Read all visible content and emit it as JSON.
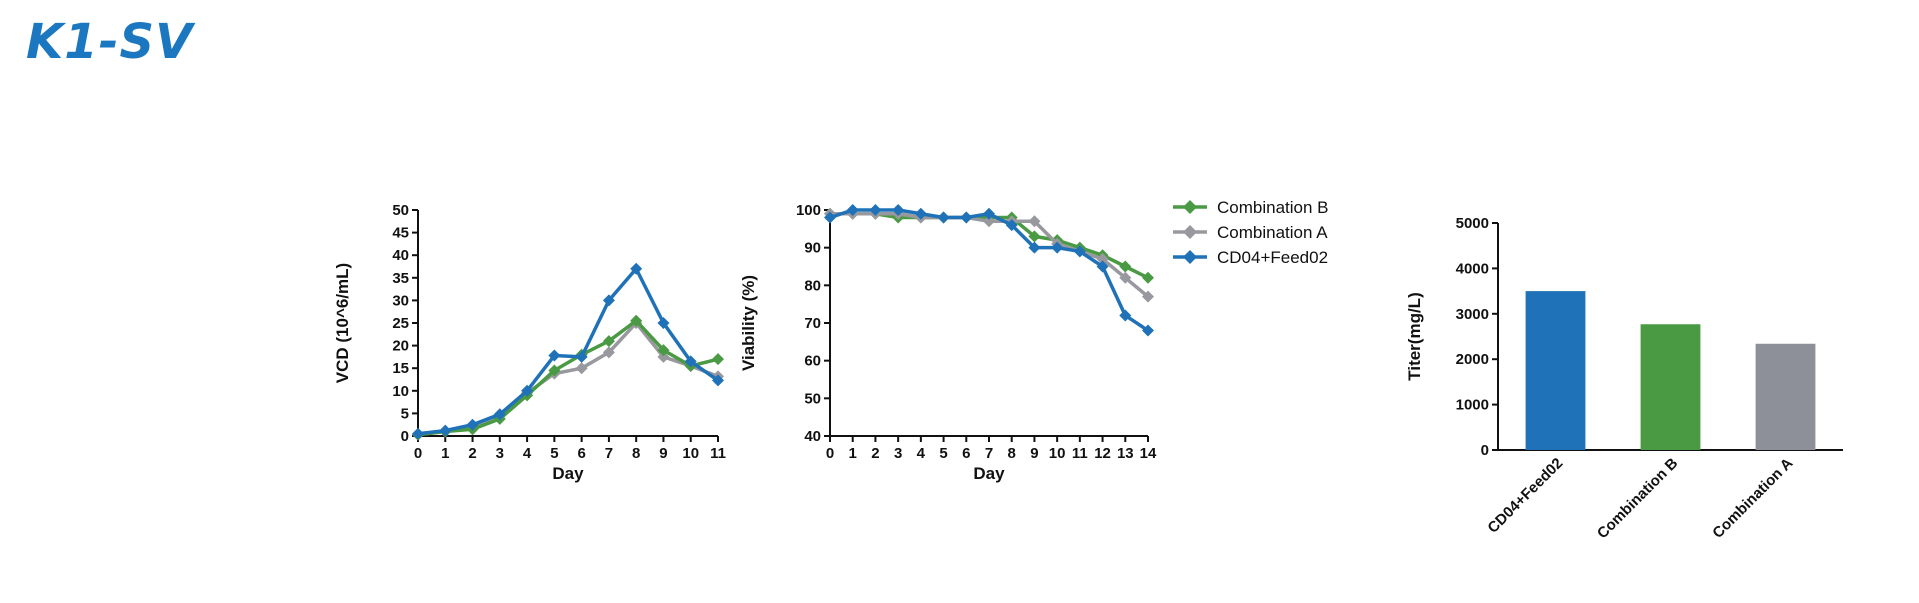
{
  "page": {
    "title": "K1-SV"
  },
  "colors": {
    "combination_b": "#4a9a43",
    "combination_a": "#98989f",
    "cd04_feed02": "#1f72b8"
  },
  "chart_data": [
    {
      "id": "vcd",
      "type": "line",
      "xlabel": "Day",
      "ylabel": "VCD (10^6/mL)",
      "xlim": [
        0,
        11
      ],
      "ylim": [
        0,
        50
      ],
      "x": [
        0,
        1,
        2,
        3,
        4,
        5,
        6,
        7,
        8,
        9,
        10,
        11
      ],
      "x_ticks": [
        "0",
        "1",
        "2",
        "3",
        "4",
        "5",
        "6",
        "7",
        "8",
        "9",
        "10",
        "11"
      ],
      "y_ticks": [
        "0",
        "5",
        "10",
        "15",
        "20",
        "25",
        "30",
        "35",
        "40",
        "45",
        "50"
      ],
      "series": [
        {
          "name": "Combination A",
          "color": "#98989f",
          "values": [
            0.3,
            1.0,
            2.0,
            4.5,
            9.5,
            13.8,
            15.0,
            18.5,
            25.0,
            17.5,
            15.5,
            13.2
          ]
        },
        {
          "name": "Combination B",
          "color": "#4a9a43",
          "values": [
            0.3,
            1.0,
            1.5,
            3.8,
            9.0,
            14.5,
            18.0,
            21.0,
            25.5,
            19.0,
            15.5,
            17.0
          ]
        },
        {
          "name": "CD04+Feed02",
          "color": "#1f72b8",
          "values": [
            0.5,
            1.2,
            2.5,
            4.8,
            10.0,
            17.8,
            17.5,
            30.0,
            37.0,
            25.0,
            16.5,
            12.3
          ]
        }
      ]
    },
    {
      "id": "viability",
      "type": "line",
      "xlabel": "Day",
      "ylabel": "Viability (%)",
      "xlim": [
        0,
        14
      ],
      "ylim": [
        40,
        100
      ],
      "x": [
        0,
        1,
        2,
        3,
        4,
        5,
        6,
        7,
        8,
        9,
        10,
        11,
        12,
        13,
        14
      ],
      "x_ticks": [
        "0",
        "1",
        "2",
        "3",
        "4",
        "5",
        "6",
        "7",
        "8",
        "9",
        "10",
        "11",
        "12",
        "13",
        "14"
      ],
      "y_ticks": [
        "40",
        "50",
        "60",
        "70",
        "80",
        "90",
        "100"
      ],
      "legend": "top-right",
      "series": [
        {
          "name": "Combination B",
          "color": "#4a9a43",
          "values": [
            99,
            99,
            99,
            98,
            98,
            98,
            98,
            98,
            98,
            93,
            92,
            90,
            88,
            85,
            82
          ]
        },
        {
          "name": "Combination A",
          "color": "#98989f",
          "values": [
            99,
            99,
            99,
            99,
            98,
            98,
            98,
            97,
            97,
            97,
            91,
            89,
            87,
            82,
            77
          ]
        },
        {
          "name": "CD04+Feed02",
          "color": "#1f72b8",
          "values": [
            98,
            100,
            100,
            100,
            99,
            98,
            98,
            99,
            96,
            90,
            90,
            89,
            85,
            72,
            68
          ]
        }
      ]
    },
    {
      "id": "titer",
      "type": "bar",
      "ylabel": "Titer(mg/L)",
      "ylim": [
        0,
        5000
      ],
      "y_ticks": [
        "0",
        "1000",
        "2000",
        "3000",
        "4000",
        "5000"
      ],
      "categories": [
        "CD04+Feed02",
        "Combination B",
        "Combination A"
      ],
      "values": [
        3500,
        2770,
        2340
      ],
      "bar_colors": [
        "#1f72b8",
        "#4a9a43",
        "#8e9099"
      ]
    }
  ]
}
